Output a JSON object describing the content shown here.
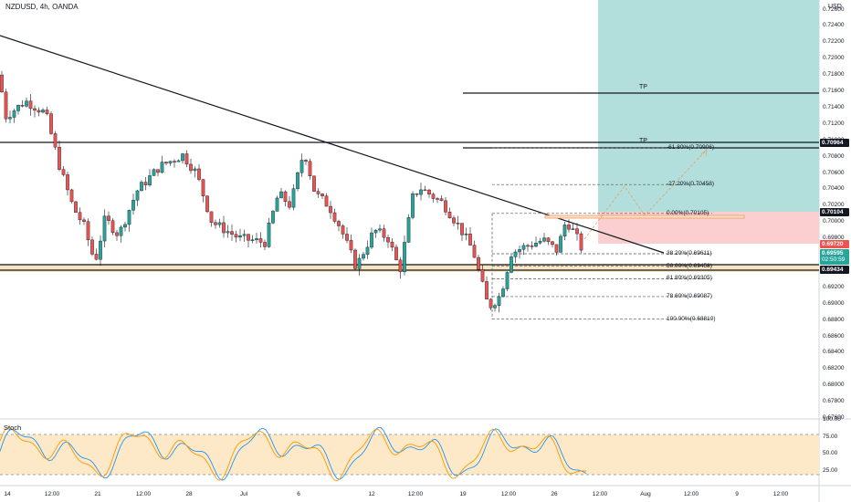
{
  "header": {
    "symbol_title": "NZDUSD, 4h, OANDA",
    "currency": "USD"
  },
  "price_axis": {
    "labels": [
      "0.72600",
      "0.72400",
      "0.72200",
      "0.72000",
      "0.71800",
      "0.71600",
      "0.71400",
      "0.71200",
      "0.71000",
      "0.70800",
      "0.70600",
      "0.70400",
      "0.70200",
      "0.70000",
      "0.69800",
      "0.69600",
      "0.69400",
      "0.69200",
      "0.69000",
      "0.68800",
      "0.68600",
      "0.68400",
      "0.68200",
      "0.68000",
      "0.67800",
      "0.67600"
    ],
    "badges": {
      "resistance": "0.70964",
      "entry": "0.70104",
      "stop": "0.69720",
      "last_price": "0.69595",
      "countdown": "02:50:59",
      "support": "0.69434"
    }
  },
  "time_axis": {
    "labels": [
      "14",
      "12:00",
      "21",
      "12:00",
      "28",
      "Jul",
      "6",
      "12",
      "12:00",
      "19",
      "12:00",
      "26",
      "12:00",
      "Aug",
      "9",
      "12:00",
      "12:00"
    ]
  },
  "fibonacci": {
    "levels": [
      {
        "ratio": "-61.80%",
        "price": "0.70906",
        "label": "-61.80%(0.70906)"
      },
      {
        "ratio": "-27.20%",
        "price": "0.70458",
        "label": "-27.20%(0.70458)"
      },
      {
        "ratio": "0.00%",
        "price": "0.70105",
        "label": "0.00%(0.70105)"
      },
      {
        "ratio": "38.20%",
        "price": "0.69611",
        "label": "38.20%(0.69611)"
      },
      {
        "ratio": "50.00%",
        "price": "0.69458",
        "label": "50.00%(0.69458)"
      },
      {
        "ratio": "61.80%",
        "price": "0.69305",
        "label": "61.80%(0.69305)"
      },
      {
        "ratio": "78.60%",
        "price": "0.69087",
        "label": "78.60%(0.69087)"
      },
      {
        "ratio": "100.00%",
        "price": "0.68810",
        "label": "100.00%(0.68810)"
      }
    ]
  },
  "targets": {
    "tp1": "TP",
    "tp2": "TP"
  },
  "stoch": {
    "title": "Stoch",
    "axis_labels": [
      "100.00",
      "75.00",
      "50.00",
      "25.00"
    ],
    "upper_band": 80,
    "lower_band": 20
  },
  "colors": {
    "bull": "#26a69a",
    "bear": "#ef5350",
    "candle_outline": "#131722",
    "profit_zone": "#b2dfdb",
    "loss_zone": "#fbcfd0",
    "support_band": "#f5deb3",
    "stoch_k": "#2196f3",
    "stoch_d": "#ff9800",
    "stoch_band": "#fde9c8"
  }
}
